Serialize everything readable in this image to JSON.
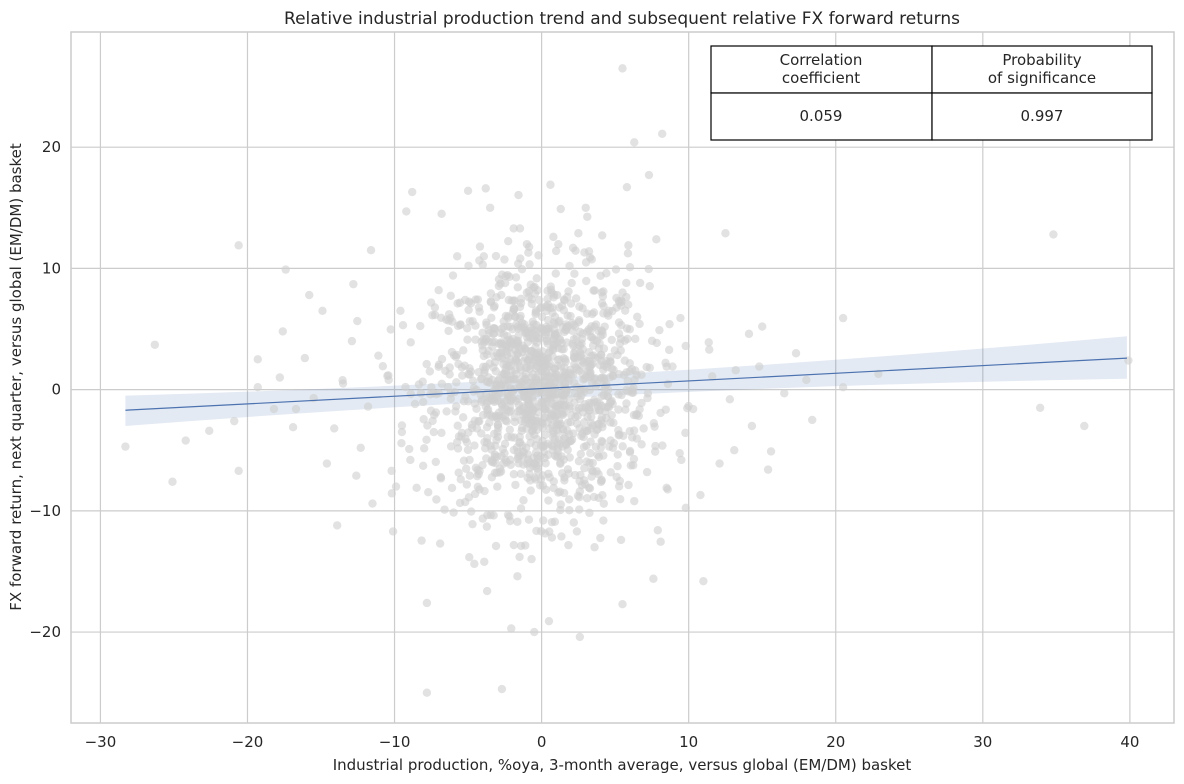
{
  "chart_data": {
    "type": "scatter",
    "title": "Relative industrial production trend and subsequent relative FX forward returns",
    "xlabel": "Industrial production, %oya, 3-month average, versus global (EM/DM) basket",
    "ylabel": "FX forward return, next quarter, versus global (EM/DM) basket",
    "xlim": [
      -32,
      43
    ],
    "ylim": [
      -27.5,
      29.5
    ],
    "xticks": [
      -30,
      -20,
      -10,
      0,
      10,
      20,
      30,
      40
    ],
    "yticks": [
      -20,
      -10,
      0,
      10,
      20
    ],
    "xtick_labels": [
      "−30",
      "−20",
      "−10",
      "0",
      "10",
      "20",
      "30",
      "40"
    ],
    "ytick_labels": [
      "−20",
      "−10",
      "0",
      "10",
      "20"
    ],
    "grid": true,
    "colors": {
      "points": "#cfcfcf",
      "regression": "#4c72b0"
    },
    "regression": {
      "x": [
        -28.3,
        39.8
      ],
      "y": [
        -1.7,
        2.6
      ],
      "ci_lower_at_ends": [
        -3.0,
        0.9
      ],
      "ci_upper_at_ends": [
        -0.5,
        4.4
      ]
    },
    "points": [
      [
        5.5,
        26.5
      ],
      [
        6.3,
        20.4
      ],
      [
        8.2,
        21.1
      ],
      [
        7.3,
        17.7
      ],
      [
        5.8,
        16.7
      ],
      [
        0.6,
        16.9
      ],
      [
        -8.8,
        16.3
      ],
      [
        -5.0,
        16.4
      ],
      [
        -3.8,
        16.6
      ],
      [
        34.8,
        12.8
      ],
      [
        -20.6,
        11.9
      ],
      [
        -11.6,
        11.5
      ],
      [
        -17.4,
        9.9
      ],
      [
        -15.8,
        7.8
      ],
      [
        -26.3,
        3.7
      ],
      [
        -19.3,
        2.5
      ],
      [
        -16.1,
        2.6
      ],
      [
        -28.3,
        -4.7
      ],
      [
        -25.1,
        -7.6
      ],
      [
        -20.6,
        -6.7
      ],
      [
        -22.6,
        -3.4
      ],
      [
        -13.9,
        -11.2
      ],
      [
        -10.1,
        -11.7
      ],
      [
        -7.8,
        -17.6
      ],
      [
        -7.8,
        -25.0
      ],
      [
        -2.7,
        -24.7
      ],
      [
        -0.5,
        -20.0
      ],
      [
        2.6,
        -20.4
      ],
      [
        0.5,
        -19.1
      ],
      [
        5.5,
        -17.7
      ],
      [
        7.6,
        -15.6
      ],
      [
        11.0,
        -15.8
      ],
      [
        15.6,
        -5.1
      ],
      [
        17.3,
        3.0
      ],
      [
        20.5,
        5.9
      ],
      [
        18.4,
        -2.5
      ],
      [
        20.5,
        0.2
      ],
      [
        22.9,
        1.3
      ],
      [
        33.9,
        -1.5
      ],
      [
        36.9,
        -3.0
      ],
      [
        39.9,
        2.4
      ],
      [
        12.5,
        12.9
      ],
      [
        -9.2,
        14.7
      ],
      [
        -6.8,
        14.5
      ],
      [
        -3.5,
        15.0
      ],
      [
        1.3,
        14.9
      ],
      [
        3.0,
        15.0
      ],
      [
        -1.0,
        12.0
      ],
      [
        -12.8,
        8.7
      ],
      [
        -9.6,
        6.5
      ],
      [
        -14.9,
        6.5
      ],
      [
        -17.6,
        4.8
      ],
      [
        -12.9,
        4.0
      ],
      [
        -8.9,
        3.9
      ],
      [
        -6.2,
        5.9
      ],
      [
        -3.2,
        6.9
      ],
      [
        -1.0,
        8.0
      ],
      [
        2.0,
        7.1
      ],
      [
        4.2,
        8.1
      ],
      [
        6.5,
        6.0
      ],
      [
        8.7,
        5.4
      ],
      [
        9.8,
        3.6
      ],
      [
        11.4,
        3.3
      ],
      [
        13.2,
        1.6
      ],
      [
        14.1,
        4.6
      ],
      [
        15.0,
        5.2
      ],
      [
        -16.7,
        -1.6
      ],
      [
        -14.1,
        -3.2
      ],
      [
        -12.3,
        -4.8
      ],
      [
        -10.2,
        -6.7
      ],
      [
        -8.5,
        -8.1
      ],
      [
        -6.6,
        -9.9
      ],
      [
        -4.7,
        -11.1
      ],
      [
        -3.1,
        -12.9
      ],
      [
        -1.5,
        -13.8
      ],
      [
        0.7,
        -12.2
      ],
      [
        2.4,
        -11.7
      ],
      [
        4.2,
        -10.8
      ],
      [
        6.3,
        -9.2
      ],
      [
        8.5,
        -8.1
      ],
      [
        10.8,
        -8.7
      ],
      [
        13.1,
        -5.0
      ],
      [
        15.4,
        -6.6
      ],
      [
        -13.5,
        0.5
      ],
      [
        -11.8,
        -1.4
      ],
      [
        -9.5,
        -3.5
      ],
      [
        -7.3,
        -2.1
      ],
      [
        -5.8,
        0.6
      ],
      [
        -4.1,
        -1.0
      ],
      [
        -2.6,
        2.1
      ],
      [
        -1.2,
        -0.6
      ],
      [
        0.3,
        1.4
      ],
      [
        1.5,
        -1.3
      ],
      [
        2.9,
        2.5
      ],
      [
        4.1,
        -2.3
      ],
      [
        5.6,
        1.2
      ],
      [
        7.2,
        -0.7
      ],
      [
        8.9,
        1.9
      ],
      [
        10.3,
        -1.6
      ],
      [
        -3.3,
        4.6
      ],
      [
        -1.8,
        3.3
      ],
      [
        0.9,
        4.4
      ],
      [
        2.2,
        3.0
      ],
      [
        3.6,
        5.2
      ],
      [
        -2.3,
        -3.9
      ],
      [
        -0.4,
        -4.6
      ],
      [
        1.1,
        -5.1
      ],
      [
        3.1,
        -3.4
      ],
      [
        -4.9,
        -5.8
      ],
      [
        -6.1,
        3.1
      ],
      [
        -7.6,
        1.5
      ],
      [
        -8.2,
        -0.3
      ],
      [
        -5.2,
        7.4
      ],
      [
        -2.9,
        9.1
      ],
      [
        1.9,
        10.2
      ],
      [
        4.4,
        9.6
      ],
      [
        6.7,
        8.8
      ],
      [
        -9.9,
        -8.0
      ],
      [
        -6.9,
        -12.7
      ],
      [
        -3.9,
        -14.2
      ],
      [
        3.6,
        -13.0
      ],
      [
        5.4,
        -12.4
      ],
      [
        7.9,
        -11.6
      ],
      [
        -20.9,
        -2.6
      ],
      [
        -19.3,
        0.2
      ],
      [
        -18.2,
        -1.6
      ],
      [
        -24.2,
        -4.2
      ],
      [
        9.5,
        -5.8
      ],
      [
        12.1,
        -6.1
      ],
      [
        11.6,
        1.1
      ],
      [
        12.8,
        -0.8
      ],
      [
        -0.1,
        -7.9
      ],
      [
        -1.4,
        -9.8
      ],
      [
        0.9,
        -10.9
      ],
      [
        2.6,
        -8.4
      ],
      [
        -2.5,
        0.3
      ],
      [
        -0.8,
        1.7
      ],
      [
        0.6,
        -2.4
      ],
      [
        1.8,
        0.9
      ],
      [
        -1.6,
        -1.8
      ],
      [
        0.2,
        0.2
      ],
      [
        2.7,
        -0.5
      ],
      [
        -3.6,
        1.0
      ],
      [
        3.8,
        0.5
      ],
      [
        -0.6,
        5.6
      ],
      [
        0.4,
        6.8
      ],
      [
        -2.1,
        -6.2
      ],
      [
        1.4,
        -6.9
      ],
      [
        -4.4,
        -3.2
      ],
      [
        4.6,
        -4.7
      ],
      [
        -5.5,
        -7.4
      ],
      [
        5.1,
        -7.2
      ],
      [
        -0.9,
        11.3
      ],
      [
        0.8,
        12.6
      ],
      [
        -1.9,
        13.3
      ],
      [
        2.5,
        12.9
      ],
      [
        -11.1,
        2.8
      ],
      [
        -10.4,
        0.8
      ],
      [
        -9.0,
        -4.9
      ],
      [
        -12.6,
        -7.1
      ],
      [
        -7.0,
        8.2
      ],
      [
        -4.0,
        10.3
      ],
      [
        3.3,
        10.9
      ],
      [
        5.9,
        11.9
      ],
      [
        7.8,
        12.4
      ],
      [
        -15.5,
        -0.7
      ],
      [
        -17.8,
        1.0
      ],
      [
        16.5,
        -0.3
      ],
      [
        18.0,
        0.8
      ],
      [
        -16.9,
        -3.1
      ],
      [
        -14.6,
        -6.1
      ],
      [
        -11.5,
        -9.4
      ],
      [
        14.3,
        -3.0
      ],
      [
        14.8,
        1.9
      ]
    ]
  },
  "stats_table": {
    "headers": [
      "Correlation\ncoefficient",
      "Probability\nof significance"
    ],
    "values": [
      "0.059",
      "0.997"
    ]
  }
}
